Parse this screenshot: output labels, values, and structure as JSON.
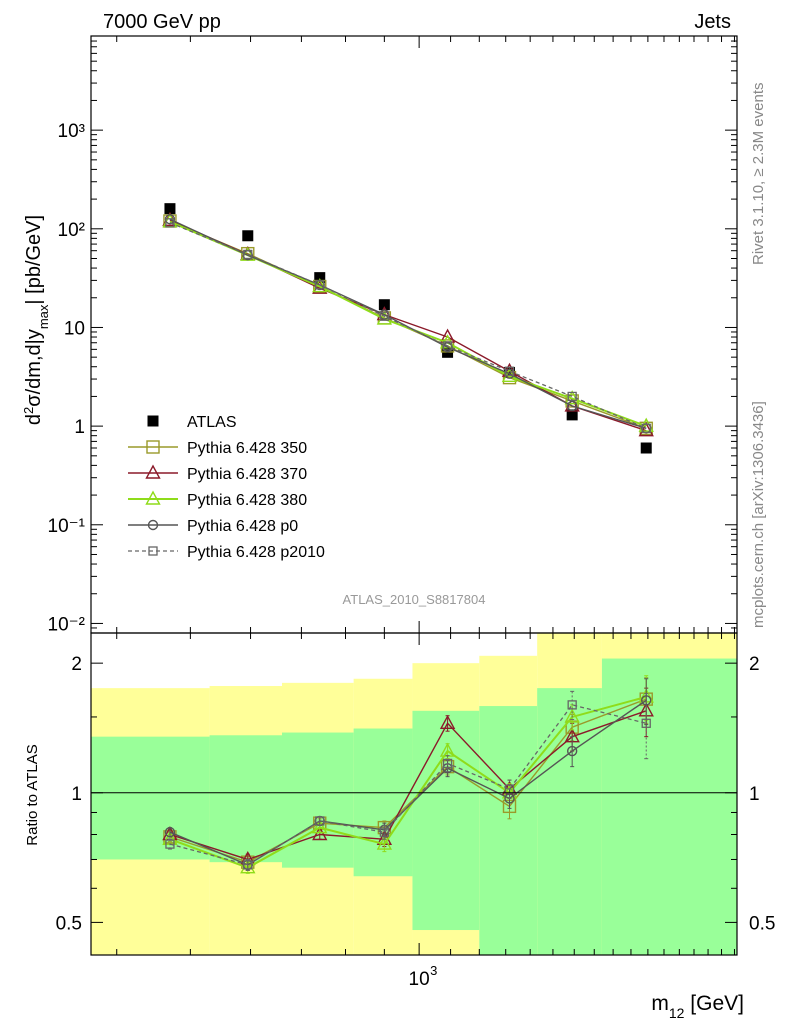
{
  "header": {
    "left": "7000 GeV pp",
    "right": "Jets"
  },
  "side_text": {
    "rivet": "Rivet 3.1.10, ≥ 2.3M events",
    "mcplots": "mcplots.cern.ch [arXiv:1306.3436]"
  },
  "analysis_label": "ATLAS_2010_S8817804",
  "colors": {
    "p350": "#9a9a2a",
    "p370": "#8b1a2a",
    "p380": "#8fdc1a",
    "p0": "#555555",
    "p2010": "#666666",
    "atlas": "#000000",
    "band_inner": "#99ff99",
    "band_outer": "#ffff99"
  },
  "chart_data": [
    {
      "type": "line",
      "title": "",
      "xlabel": "m_12 [GeV]",
      "ylabel": "d²σ/dm,d|y_max| [pb/GeV]",
      "xscale": "log",
      "yscale": "log",
      "xlim": [
        370,
        2620
      ],
      "ylim": [
        0.008,
        9000
      ],
      "yticks": [
        "10⁻²",
        "10⁻¹",
        "1",
        "10",
        "10²",
        "10³"
      ],
      "x": [
        470,
        595,
        740,
        900,
        1090,
        1315,
        1590,
        1990
      ],
      "series": [
        {
          "name": "ATLAS",
          "values": [
            160,
            85,
            32,
            17,
            5.6,
            3.5,
            1.3,
            0.6
          ]
        },
        {
          "name": "Pythia 6.428 350",
          "values": [
            120,
            56,
            26,
            12.5,
            6.5,
            3.1,
            1.8,
            0.95
          ]
        },
        {
          "name": "Pythia 6.428 370",
          "values": [
            122,
            55,
            25,
            13.5,
            8.0,
            3.6,
            1.6,
            0.9
          ]
        },
        {
          "name": "Pythia 6.428 380",
          "values": [
            118,
            54,
            26,
            12.2,
            7.0,
            3.2,
            1.9,
            1.0
          ]
        },
        {
          "name": "Pythia 6.428 p0",
          "values": [
            125,
            54,
            27,
            13.5,
            6.3,
            3.4,
            1.6,
            0.95
          ]
        },
        {
          "name": "Pythia 6.428 p2010",
          "values": [
            115,
            55,
            27,
            13.0,
            6.5,
            3.6,
            2.0,
            0.95
          ]
        }
      ],
      "legend_position": "lower-left"
    },
    {
      "type": "line",
      "xlabel": "m_12 [GeV]",
      "ylabel": "Ratio to ATLAS",
      "xscale": "log",
      "yscale": "log",
      "xlim": [
        370,
        2620
      ],
      "ylim": [
        0.42,
        2.35
      ],
      "ytick_values": [
        0.5,
        1,
        2
      ],
      "yticks": [
        "0.5",
        "1",
        "2"
      ],
      "xtick_label": "10³",
      "x": [
        470,
        595,
        740,
        900,
        1090,
        1315,
        1590,
        1990
      ],
      "bin_edges": [
        370,
        530,
        660,
        820,
        980,
        1200,
        1430,
        1740,
        2620
      ],
      "band_inner": [
        [
          0.7,
          1.35
        ],
        [
          0.69,
          1.36
        ],
        [
          0.67,
          1.38
        ],
        [
          0.64,
          1.41
        ],
        [
          0.48,
          1.55
        ],
        [
          0.4,
          1.59
        ],
        [
          0.36,
          1.75
        ],
        [
          0.36,
          2.05
        ]
      ],
      "band_outer": [
        [
          0.36,
          1.75
        ],
        [
          0.36,
          1.77
        ],
        [
          0.36,
          1.8
        ],
        [
          0.36,
          1.84
        ],
        [
          0.36,
          2.0
        ],
        [
          0.36,
          2.08
        ],
        [
          0.36,
          2.6
        ],
        [
          0.36,
          2.6
        ]
      ],
      "series": [
        {
          "name": "Pythia 6.428 350",
          "values": [
            0.79,
            0.69,
            0.85,
            0.83,
            1.15,
            0.93,
            1.42,
            1.65
          ],
          "errors": [
            0.02,
            0.02,
            0.02,
            0.03,
            0.05,
            0.06,
            0.1,
            0.2
          ]
        },
        {
          "name": "Pythia 6.428 370",
          "values": [
            0.8,
            0.7,
            0.8,
            0.78,
            1.45,
            1.02,
            1.35,
            1.55
          ],
          "errors": [
            0.02,
            0.02,
            0.02,
            0.03,
            0.06,
            0.05,
            0.1,
            0.2
          ]
        },
        {
          "name": "Pythia 6.428 380",
          "values": [
            0.78,
            0.67,
            0.83,
            0.76,
            1.25,
            1.0,
            1.5,
            1.67
          ],
          "errors": [
            0.02,
            0.02,
            0.02,
            0.03,
            0.05,
            0.05,
            0.1,
            0.2
          ]
        },
        {
          "name": "Pythia 6.428 p0",
          "values": [
            0.81,
            0.68,
            0.86,
            0.82,
            1.14,
            0.97,
            1.25,
            1.64
          ],
          "errors": [
            0.02,
            0.02,
            0.02,
            0.03,
            0.05,
            0.05,
            0.1,
            0.2
          ]
        },
        {
          "name": "Pythia 6.428 p2010",
          "values": [
            0.76,
            0.68,
            0.86,
            0.81,
            1.17,
            1.02,
            1.6,
            1.45
          ],
          "errors": [
            0.02,
            0.02,
            0.02,
            0.03,
            0.05,
            0.05,
            0.12,
            0.25
          ]
        }
      ]
    }
  ]
}
